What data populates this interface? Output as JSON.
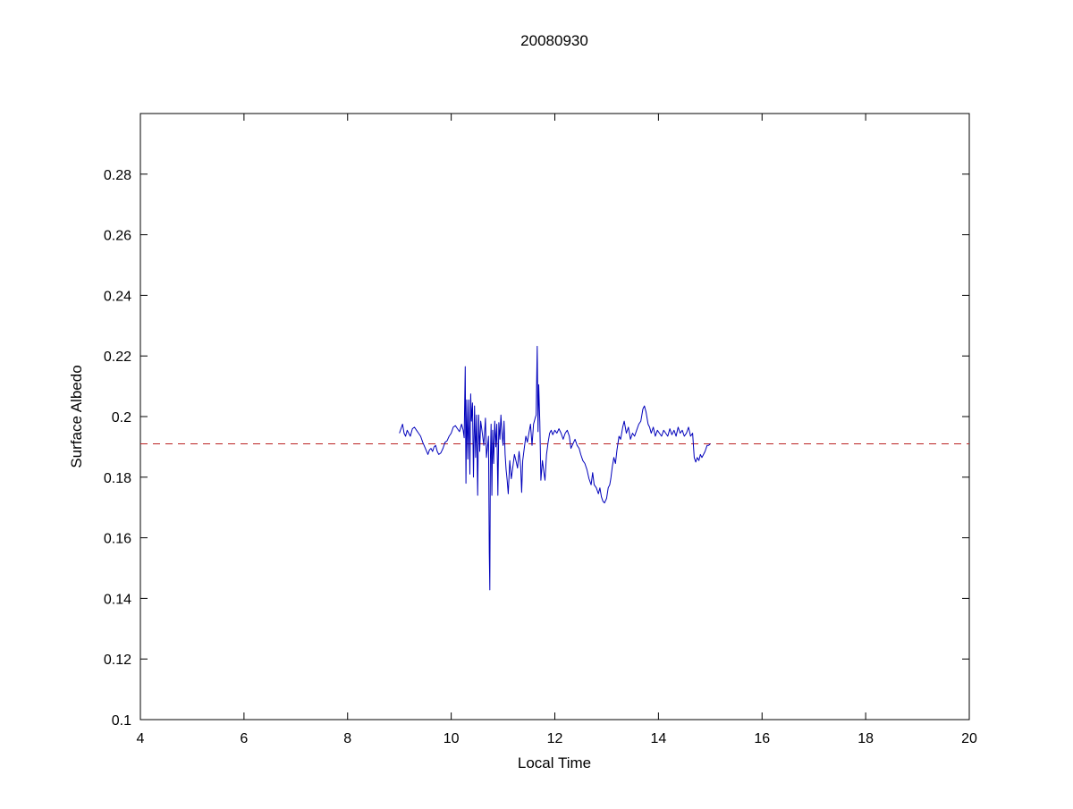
{
  "figure": {
    "title": "20080930",
    "xlabel": "Local Time",
    "ylabel": "Surface Albedo"
  },
  "chart_data": {
    "type": "line",
    "title": "20080930",
    "xlabel": "Local Time",
    "ylabel": "Surface Albedo",
    "xlim": [
      4,
      20
    ],
    "ylim": [
      0.1,
      0.3
    ],
    "xticks": [
      4,
      6,
      8,
      10,
      12,
      14,
      16,
      18,
      20
    ],
    "xtick_labels": [
      "4",
      "6",
      "8",
      "10",
      "12",
      "14",
      "16",
      "18",
      "20"
    ],
    "yticks": [
      0.1,
      0.12,
      0.14,
      0.16,
      0.18,
      0.2,
      0.22,
      0.24,
      0.26,
      0.28
    ],
    "ytick_labels": [
      "0.1",
      "0.12",
      "0.14",
      "0.16",
      "0.18",
      "0.2",
      "0.22",
      "0.24",
      "0.26",
      "0.28"
    ],
    "grid": false,
    "legend": "none",
    "colors": {
      "axis": "#000000",
      "background": "#ffffff",
      "series": "#0000bb",
      "reference": "#bb2222"
    },
    "series": [
      {
        "name": "surface-albedo",
        "type": "line",
        "color": "#0000bb",
        "points": [
          [
            9.0,
            0.1945
          ],
          [
            9.03,
            0.196
          ],
          [
            9.06,
            0.1975
          ],
          [
            9.09,
            0.1945
          ],
          [
            9.12,
            0.1935
          ],
          [
            9.15,
            0.1955
          ],
          [
            9.18,
            0.1945
          ],
          [
            9.21,
            0.1935
          ],
          [
            9.25,
            0.196
          ],
          [
            9.29,
            0.1965
          ],
          [
            9.33,
            0.1955
          ],
          [
            9.37,
            0.1945
          ],
          [
            9.41,
            0.1935
          ],
          [
            9.45,
            0.1915
          ],
          [
            9.5,
            0.1895
          ],
          [
            9.55,
            0.1875
          ],
          [
            9.58,
            0.189
          ],
          [
            9.61,
            0.1895
          ],
          [
            9.64,
            0.1885
          ],
          [
            9.67,
            0.19
          ],
          [
            9.7,
            0.1905
          ],
          [
            9.73,
            0.1885
          ],
          [
            9.76,
            0.1875
          ],
          [
            9.8,
            0.188
          ],
          [
            9.84,
            0.1895
          ],
          [
            9.88,
            0.1915
          ],
          [
            9.92,
            0.192
          ],
          [
            9.96,
            0.1935
          ],
          [
            10.0,
            0.1945
          ],
          [
            10.04,
            0.1965
          ],
          [
            10.08,
            0.197
          ],
          [
            10.12,
            0.196
          ],
          [
            10.16,
            0.195
          ],
          [
            10.2,
            0.1975
          ],
          [
            10.23,
            0.1955
          ],
          [
            10.25,
            0.193
          ],
          [
            10.27,
            0.2165
          ],
          [
            10.285,
            0.178
          ],
          [
            10.3,
            0.2055
          ],
          [
            10.32,
            0.186
          ],
          [
            10.34,
            0.2055
          ],
          [
            10.36,
            0.181
          ],
          [
            10.375,
            0.2075
          ],
          [
            10.39,
            0.1985
          ],
          [
            10.41,
            0.2045
          ],
          [
            10.43,
            0.18
          ],
          [
            10.45,
            0.2035
          ],
          [
            10.47,
            0.1865
          ],
          [
            10.49,
            0.2005
          ],
          [
            10.51,
            0.174
          ],
          [
            10.53,
            0.2005
          ],
          [
            10.55,
            0.1885
          ],
          [
            10.57,
            0.1985
          ],
          [
            10.6,
            0.1945
          ],
          [
            10.63,
            0.1905
          ],
          [
            10.66,
            0.1995
          ],
          [
            10.68,
            0.1865
          ],
          [
            10.7,
            0.19
          ],
          [
            10.72,
            0.1935
          ],
          [
            10.735,
            0.155
          ],
          [
            10.745,
            0.1428
          ],
          [
            10.755,
            0.1855
          ],
          [
            10.77,
            0.1975
          ],
          [
            10.785,
            0.174
          ],
          [
            10.8,
            0.1955
          ],
          [
            10.82,
            0.1845
          ],
          [
            10.84,
            0.1985
          ],
          [
            10.86,
            0.19
          ],
          [
            10.88,
            0.1975
          ],
          [
            10.9,
            0.174
          ],
          [
            10.92,
            0.198
          ],
          [
            10.94,
            0.1925
          ],
          [
            10.96,
            0.2005
          ],
          [
            10.98,
            0.1945
          ],
          [
            11.0,
            0.1905
          ],
          [
            11.02,
            0.1985
          ],
          [
            11.04,
            0.1875
          ],
          [
            11.06,
            0.1825
          ],
          [
            11.08,
            0.179
          ],
          [
            11.1,
            0.1745
          ],
          [
            11.13,
            0.1855
          ],
          [
            11.16,
            0.1795
          ],
          [
            11.19,
            0.1835
          ],
          [
            11.22,
            0.1875
          ],
          [
            11.25,
            0.1855
          ],
          [
            11.28,
            0.183
          ],
          [
            11.31,
            0.1885
          ],
          [
            11.34,
            0.1835
          ],
          [
            11.36,
            0.175
          ],
          [
            11.38,
            0.1855
          ],
          [
            11.41,
            0.1895
          ],
          [
            11.44,
            0.1935
          ],
          [
            11.47,
            0.1915
          ],
          [
            11.5,
            0.1945
          ],
          [
            11.53,
            0.1975
          ],
          [
            11.56,
            0.1905
          ],
          [
            11.59,
            0.1975
          ],
          [
            11.62,
            0.1995
          ],
          [
            11.64,
            0.2005
          ],
          [
            11.66,
            0.2232
          ],
          [
            11.675,
            0.195
          ],
          [
            11.69,
            0.2105
          ],
          [
            11.71,
            0.1985
          ],
          [
            11.73,
            0.179
          ],
          [
            11.76,
            0.1855
          ],
          [
            11.79,
            0.1815
          ],
          [
            11.81,
            0.179
          ],
          [
            11.84,
            0.1875
          ],
          [
            11.87,
            0.1915
          ],
          [
            11.9,
            0.1945
          ],
          [
            11.93,
            0.1955
          ],
          [
            11.96,
            0.194
          ],
          [
            12.0,
            0.1955
          ],
          [
            12.04,
            0.1945
          ],
          [
            12.08,
            0.196
          ],
          [
            12.12,
            0.1945
          ],
          [
            12.16,
            0.1925
          ],
          [
            12.2,
            0.1945
          ],
          [
            12.24,
            0.1955
          ],
          [
            12.28,
            0.1935
          ],
          [
            12.31,
            0.1895
          ],
          [
            12.35,
            0.191
          ],
          [
            12.39,
            0.1925
          ],
          [
            12.43,
            0.1905
          ],
          [
            12.47,
            0.1895
          ],
          [
            12.5,
            0.1875
          ],
          [
            12.54,
            0.1855
          ],
          [
            12.58,
            0.1845
          ],
          [
            12.62,
            0.1825
          ],
          [
            12.66,
            0.1795
          ],
          [
            12.7,
            0.1775
          ],
          [
            12.73,
            0.1815
          ],
          [
            12.76,
            0.1775
          ],
          [
            12.8,
            0.1765
          ],
          [
            12.84,
            0.1745
          ],
          [
            12.87,
            0.1765
          ],
          [
            12.9,
            0.1735
          ],
          [
            12.93,
            0.172
          ],
          [
            12.96,
            0.1715
          ],
          [
            13.0,
            0.173
          ],
          [
            13.03,
            0.1765
          ],
          [
            13.06,
            0.1775
          ],
          [
            13.08,
            0.1795
          ],
          [
            13.11,
            0.1835
          ],
          [
            13.14,
            0.1865
          ],
          [
            13.17,
            0.1845
          ],
          [
            13.2,
            0.189
          ],
          [
            13.24,
            0.1935
          ],
          [
            13.27,
            0.1925
          ],
          [
            13.31,
            0.1965
          ],
          [
            13.34,
            0.1985
          ],
          [
            13.38,
            0.1945
          ],
          [
            13.42,
            0.1965
          ],
          [
            13.46,
            0.1925
          ],
          [
            13.5,
            0.1945
          ],
          [
            13.54,
            0.1935
          ],
          [
            13.58,
            0.1955
          ],
          [
            13.62,
            0.1975
          ],
          [
            13.66,
            0.1985
          ],
          [
            13.7,
            0.2025
          ],
          [
            13.73,
            0.2035
          ],
          [
            13.76,
            0.2015
          ],
          [
            13.8,
            0.1975
          ],
          [
            13.83,
            0.1965
          ],
          [
            13.86,
            0.1945
          ],
          [
            13.9,
            0.1965
          ],
          [
            13.94,
            0.1935
          ],
          [
            13.98,
            0.1955
          ],
          [
            14.02,
            0.1945
          ],
          [
            14.06,
            0.1935
          ],
          [
            14.1,
            0.1955
          ],
          [
            14.14,
            0.1945
          ],
          [
            14.18,
            0.1935
          ],
          [
            14.22,
            0.196
          ],
          [
            14.26,
            0.194
          ],
          [
            14.3,
            0.1955
          ],
          [
            14.34,
            0.1935
          ],
          [
            14.38,
            0.1965
          ],
          [
            14.42,
            0.1945
          ],
          [
            14.46,
            0.1955
          ],
          [
            14.5,
            0.1935
          ],
          [
            14.54,
            0.1945
          ],
          [
            14.58,
            0.1965
          ],
          [
            14.62,
            0.1935
          ],
          [
            14.66,
            0.1945
          ],
          [
            14.69,
            0.1865
          ],
          [
            14.72,
            0.185
          ],
          [
            14.75,
            0.1865
          ],
          [
            14.78,
            0.1855
          ],
          [
            14.81,
            0.1875
          ],
          [
            14.84,
            0.1865
          ],
          [
            14.87,
            0.1875
          ],
          [
            14.9,
            0.1885
          ],
          [
            14.94,
            0.1905
          ],
          [
            14.97,
            0.1905
          ],
          [
            15.0,
            0.191
          ]
        ]
      },
      {
        "name": "mean-albedo-reference",
        "type": "hline",
        "style": "dashed",
        "color": "#bb2222",
        "y": 0.191,
        "x_start": 4,
        "x_end": 20
      }
    ]
  }
}
